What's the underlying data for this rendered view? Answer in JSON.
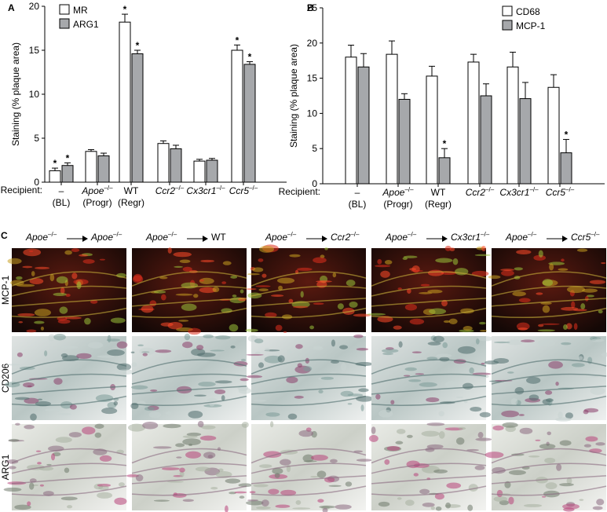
{
  "chart_data": [
    {
      "type": "bar",
      "panel": "A",
      "ylabel": "Staining (% plaque area)",
      "xlabel": "Recipient:",
      "categories": [
        "–",
        "Apoe–/–",
        "WT",
        "Ccr2–/–",
        "Cx3cr1–/–",
        "Ccr5–/–"
      ],
      "category_subtitles": [
        "(BL)",
        "(Progr)",
        "(Regr)"
      ],
      "ylim": [
        0,
        20
      ],
      "yticks": [
        0,
        5,
        10,
        15,
        20
      ],
      "legend": "top-left",
      "series": [
        {
          "name": "MR",
          "color": "#ffffff",
          "values": [
            1.3,
            3.5,
            18.2,
            4.4,
            2.4,
            15.0
          ],
          "errors": [
            0.3,
            0.2,
            0.9,
            0.3,
            0.2,
            0.6
          ],
          "markers": [
            "*",
            null,
            "*",
            null,
            null,
            "*"
          ]
        },
        {
          "name": "ARG1",
          "color": "#a6a8ab",
          "values": [
            1.9,
            3.0,
            14.6,
            3.8,
            2.5,
            13.4
          ],
          "errors": [
            0.3,
            0.3,
            0.4,
            0.4,
            0.2,
            0.3
          ],
          "markers": [
            "*",
            null,
            "*",
            null,
            null,
            "*"
          ]
        }
      ]
    },
    {
      "type": "bar",
      "panel": "B",
      "ylabel": "Staining (% plaque area)",
      "xlabel": "Recipient:",
      "categories": [
        "–",
        "Apoe–/–",
        "WT",
        "Ccr2–/–",
        "Cx3cr1–/–",
        "Ccr5–/–"
      ],
      "category_subtitles": [
        "(BL)",
        "(Progr)",
        "(Regr)"
      ],
      "ylim": [
        0,
        25
      ],
      "yticks": [
        0,
        5,
        10,
        15,
        20,
        25
      ],
      "legend": "top-right",
      "series": [
        {
          "name": "CD68",
          "color": "#ffffff",
          "values": [
            18.0,
            18.4,
            15.3,
            17.3,
            16.6,
            13.7
          ],
          "errors": [
            1.7,
            1.9,
            1.4,
            1.1,
            2.1,
            1.8
          ],
          "markers": [
            null,
            null,
            null,
            null,
            null,
            null
          ]
        },
        {
          "name": "MCP-1",
          "color": "#a6a8ab",
          "values": [
            16.6,
            12.0,
            3.7,
            12.5,
            12.1,
            4.4
          ],
          "errors": [
            1.9,
            0.8,
            1.3,
            1.7,
            2.3,
            1.9
          ],
          "markers": [
            null,
            null,
            "*",
            null,
            null,
            "*"
          ]
        }
      ]
    }
  ],
  "panel_c": {
    "label": "C",
    "donor": "Apoe–/–",
    "recipients": [
      "Apoe–/–",
      "WT",
      "Ccr2–/–",
      "Cx3cr1–/–",
      "Ccr5–/–"
    ],
    "stains": [
      "MCP-1",
      "CD206",
      "ARG1"
    ]
  }
}
